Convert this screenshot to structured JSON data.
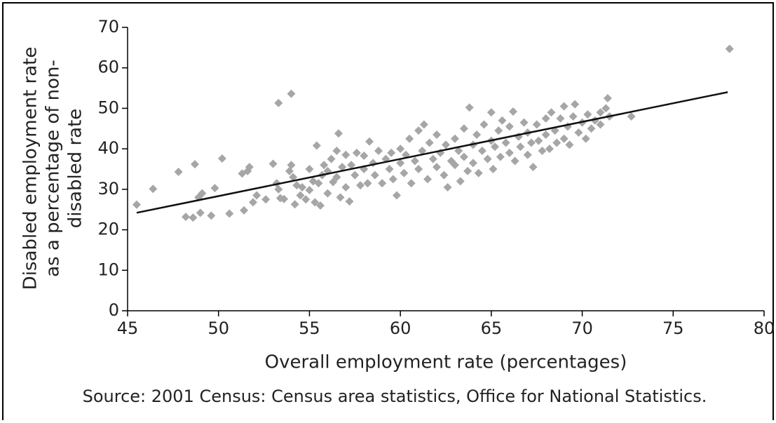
{
  "chart_data": {
    "type": "scatter",
    "ylabel": [
      "Disabled employment rate",
      "as a percentage of non-",
      "disabled rate"
    ],
    "xlabel": "Overall employment rate (percentages)",
    "caption": "Source: 2001 Census: Census area statistics, Office for National Statistics.",
    "color": "#a6a6a6",
    "x": [
      45.5,
      46.4,
      47.8,
      48.2,
      48.6,
      48.7,
      48.9,
      49,
      49.1,
      49.6,
      49.8,
      50.2,
      50.6,
      51.3,
      51.4,
      51.6,
      51.7,
      51.9,
      52.1,
      52.6,
      53,
      53.2,
      53.3,
      53.3,
      53.4,
      53.6,
      53.9,
      54,
      54,
      54.1,
      54.2,
      54.3,
      54.5,
      54.6,
      54.8,
      55,
      55,
      55.2,
      55.3,
      55.4,
      55.5,
      55.6,
      55.7,
      55.8,
      56,
      56,
      56.2,
      56.3,
      56.5,
      56.5,
      56.6,
      56.7,
      56.8,
      57,
      57,
      57.2,
      57.3,
      57.5,
      57.6,
      57.8,
      58,
      58,
      58.2,
      58.3,
      58.5,
      58.6,
      58.8,
      59,
      59.2,
      59.4,
      59.5,
      59.6,
      59.8,
      60,
      60,
      60.2,
      60.3,
      60.5,
      60.6,
      60.8,
      61,
      61,
      61.2,
      61.3,
      61.5,
      61.6,
      61.8,
      62,
      62,
      62.2,
      62.4,
      62.5,
      62.6,
      62.8,
      63,
      63,
      63.2,
      63.3,
      63.5,
      63.5,
      63.7,
      63.8,
      64,
      64,
      64.2,
      64.3,
      64.5,
      64.6,
      64.8,
      65,
      65,
      65.1,
      65.2,
      65.4,
      65.5,
      65.6,
      65.8,
      66,
      66,
      66.2,
      66.3,
      66.5,
      66.6,
      66.8,
      67,
      67,
      67.2,
      67.3,
      67.5,
      67.6,
      67.8,
      68,
      68,
      68.2,
      68.3,
      68.5,
      68.6,
      68.8,
      69,
      69,
      69.2,
      69.3,
      69.5,
      69.6,
      69.8,
      70,
      70.2,
      70.3,
      70.5,
      70.7,
      71,
      71,
      71.3,
      71.4,
      71.5,
      72.7,
      78.1
    ],
    "values": [
      26.2,
      30.1,
      34.3,
      23.2,
      23,
      36.2,
      28,
      24.2,
      29,
      23.5,
      30.3,
      37.6,
      24,
      33.9,
      24.8,
      34.5,
      35.5,
      26.8,
      28.5,
      27.5,
      36.3,
      31.5,
      51.3,
      30,
      27.8,
      27.6,
      34.5,
      53.6,
      36,
      33,
      26.3,
      31,
      28.5,
      30.5,
      27.5,
      29.8,
      35,
      32,
      26.8,
      40.8,
      31.5,
      26,
      33.5,
      36,
      29,
      34.5,
      37.5,
      31.8,
      39.5,
      33,
      43.8,
      28,
      35.5,
      30.5,
      38.5,
      27,
      36,
      33.5,
      39,
      31,
      35,
      38.3,
      31.5,
      41.8,
      36.5,
      33.5,
      39.5,
      31.5,
      37.5,
      35,
      39,
      32.5,
      28.5,
      36.5,
      40,
      34,
      38.5,
      42.5,
      31.5,
      37,
      44.5,
      35,
      39.5,
      46,
      32.5,
      41.5,
      37.5,
      35.5,
      43.5,
      39,
      33.5,
      41,
      30.5,
      37,
      42.5,
      36,
      39.5,
      32,
      45,
      38,
      34.5,
      50.2,
      41,
      36.5,
      43.5,
      34,
      39.5,
      46,
      37.5,
      42,
      49,
      35,
      40.5,
      44.5,
      38,
      47,
      41.5,
      39,
      45.5,
      49.2,
      37,
      43,
      40.5,
      46.5,
      38.5,
      44,
      41.5,
      35.5,
      46,
      42,
      39.5,
      47.5,
      43.5,
      40,
      49,
      44.5,
      41.5,
      47.5,
      42.5,
      50.5,
      45.5,
      41,
      48,
      51,
      44,
      46.5,
      42.5,
      48.5,
      45,
      47,
      49,
      46,
      50,
      52.5,
      48,
      48,
      64.7
    ],
    "trendline": {
      "x": [
        45.5,
        78
      ],
      "y": [
        24.2,
        54
      ],
      "color": "#111111"
    },
    "xlim": [
      45,
      80
    ],
    "xticks": [
      45,
      50,
      55,
      60,
      65,
      70,
      75,
      80
    ],
    "ylim": [
      0,
      70
    ],
    "yticks": [
      0,
      10,
      20,
      30,
      40,
      50,
      60,
      70
    ]
  }
}
